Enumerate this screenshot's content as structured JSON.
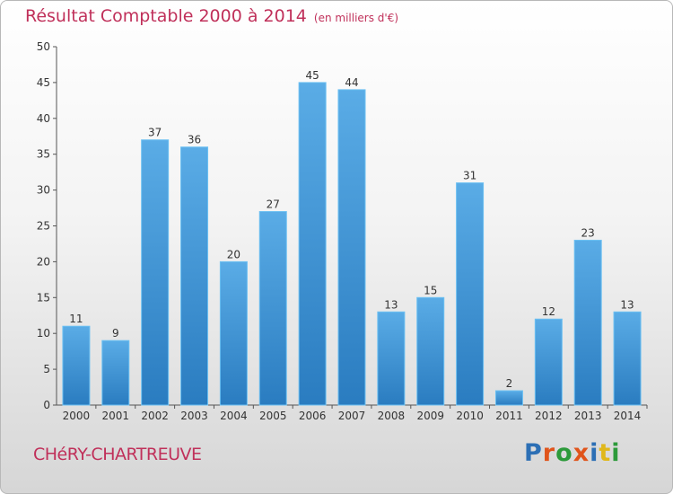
{
  "title": "Résultat Comptable 2000 à 2014",
  "subtitle": "(en milliers d'€)",
  "commune": "CHéRY-CHARTREUVE",
  "logo": {
    "text": "Proxiti",
    "colors": [
      "#2c6fb5",
      "#e0541b",
      "#2c9a3a",
      "#e0541b",
      "#2c6fb5",
      "#e0b81b",
      "#2c9a3a"
    ]
  },
  "colors": {
    "bar_top": "#5aace6",
    "bar_bottom": "#2a7cc0",
    "accent": "#c0305a"
  },
  "chart_data": {
    "type": "bar",
    "categories": [
      "2000",
      "2001",
      "2002",
      "2003",
      "2004",
      "2005",
      "2006",
      "2007",
      "2008",
      "2009",
      "2010",
      "2011",
      "2012",
      "2013",
      "2014"
    ],
    "values": [
      11,
      9,
      37,
      36,
      20,
      27,
      45,
      44,
      13,
      15,
      31,
      2,
      12,
      23,
      13
    ],
    "ylim": [
      0,
      50
    ],
    "yticks": [
      0,
      5,
      10,
      15,
      20,
      25,
      30,
      35,
      40,
      45,
      50
    ],
    "grid": false,
    "data_labels": true
  }
}
